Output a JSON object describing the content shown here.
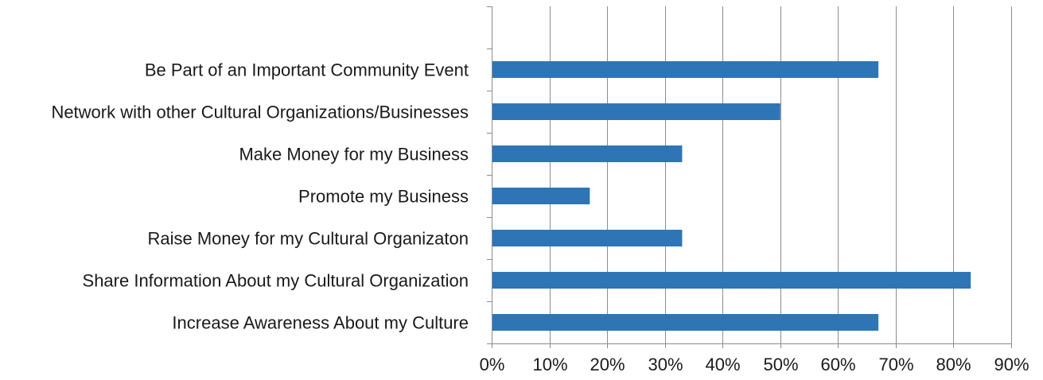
{
  "chart_data": {
    "type": "bar",
    "orientation": "horizontal",
    "categories": [
      "Be Part of an Important Community Event",
      "Network with other Cultural Organizations/Businesses",
      "Make Money for my Business",
      "Promote my Business",
      "Raise Money for my Cultural Organizaton ",
      "Share Information About my Cultural Organization",
      "Increase Awareness About my Culture"
    ],
    "values": [
      67,
      50,
      33,
      17,
      33,
      83,
      67
    ],
    "x_tick_labels": [
      "0%",
      "10%",
      "20%",
      "30%",
      "40%",
      "50%",
      "60%",
      "70%",
      "80%",
      "90%"
    ],
    "xlim": [
      0,
      90
    ],
    "x_unit": "%",
    "title": "",
    "xlabel": "",
    "ylabel": "",
    "grid": "vertical",
    "legend": "none",
    "colors": {
      "bar": "#2e75b6",
      "grid": "#8c8c8c",
      "axis": "#8c8c8c",
      "text": "#1a1a1a"
    }
  }
}
